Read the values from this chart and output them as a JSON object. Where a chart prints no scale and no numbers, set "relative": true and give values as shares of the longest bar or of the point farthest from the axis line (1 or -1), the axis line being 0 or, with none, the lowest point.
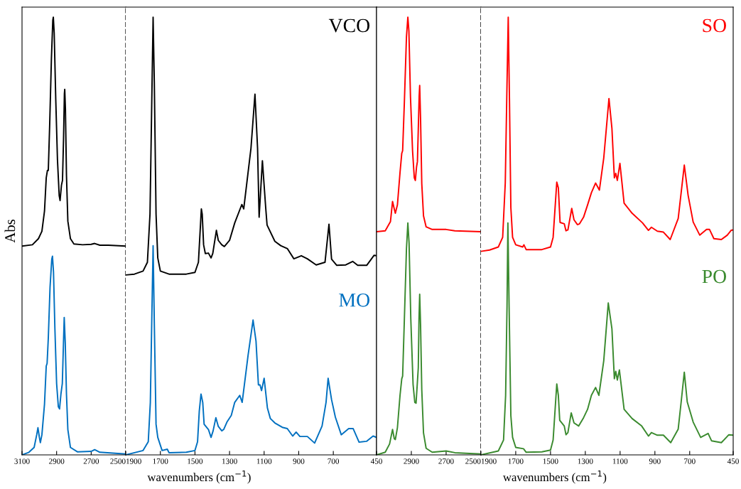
{
  "chart_data": [
    {
      "type": "line",
      "relative": true,
      "ylabel": "Abs",
      "xlim": [
        3100,
        2500
      ],
      "xticks": [
        3100,
        2900,
        2700,
        2500
      ],
      "series": [
        {
          "color": "#000000",
          "x": [
            3100,
            3040,
            3005,
            2985,
            2970,
            2960,
            2953,
            2948,
            2940,
            2930,
            2922,
            2919,
            2914,
            2905,
            2895,
            2885,
            2880,
            2872,
            2866,
            2860,
            2855,
            2853,
            2849,
            2843,
            2835,
            2820,
            2800,
            2750,
            2700,
            2680,
            2650,
            2600,
            2500
          ],
          "values": [
            0.477,
            0.48,
            0.494,
            0.511,
            0.557,
            0.633,
            0.65,
            0.65,
            0.755,
            0.906,
            0.993,
            1.0,
            0.964,
            0.813,
            0.674,
            0.592,
            0.581,
            0.616,
            0.627,
            0.72,
            0.825,
            0.835,
            0.79,
            0.639,
            0.534,
            0.494,
            0.482,
            0.48,
            0.481,
            0.483,
            0.479,
            0.479,
            0.477
          ]
        },
        {
          "color": "#0070c0",
          "x": [
            3100,
            3060,
            3030,
            3015,
            3008,
            3000,
            2994,
            2985,
            2970,
            2960,
            2955,
            2948,
            2938,
            2928,
            2924,
            2918,
            2910,
            2900,
            2890,
            2883,
            2875,
            2867,
            2862,
            2856,
            2850,
            2843,
            2835,
            2820,
            2780,
            2700,
            2680,
            2650,
            2500
          ],
          "values": [
            0.0,
            0.006,
            0.017,
            0.046,
            0.062,
            0.041,
            0.028,
            0.046,
            0.116,
            0.203,
            0.209,
            0.267,
            0.383,
            0.447,
            0.454,
            0.418,
            0.29,
            0.163,
            0.11,
            0.105,
            0.139,
            0.163,
            0.232,
            0.314,
            0.256,
            0.139,
            0.058,
            0.017,
            0.007,
            0.008,
            0.012,
            0.006,
            0.002
          ]
        }
      ]
    },
    {
      "type": "line",
      "relative": true,
      "xlabel": "wavenumbers (cm$^{−1}$)",
      "xlim": [
        1900,
        450
      ],
      "xticks": [
        1900,
        1700,
        1500,
        1300,
        1100,
        900,
        700,
        450
      ],
      "series": [
        {
          "name": "VCO",
          "color": "#000000",
          "x": [
            1900,
            1850,
            1800,
            1775,
            1760,
            1750,
            1742,
            1735,
            1725,
            1715,
            1700,
            1650,
            1550,
            1500,
            1480,
            1463,
            1458,
            1450,
            1440,
            1422,
            1407,
            1397,
            1376,
            1365,
            1345,
            1330,
            1300,
            1270,
            1229,
            1218,
            1176,
            1153,
            1138,
            1129,
            1110,
            1091,
            1083,
            1038,
            1004,
            965,
            928,
            885,
            850,
            799,
            748,
            725,
            710,
            680,
            628,
            588,
            559,
            507,
            464,
            450
          ],
          "values": [
            0.411,
            0.413,
            0.42,
            0.44,
            0.55,
            0.8,
            1.0,
            0.85,
            0.55,
            0.45,
            0.42,
            0.413,
            0.413,
            0.417,
            0.44,
            0.562,
            0.55,
            0.48,
            0.46,
            0.461,
            0.45,
            0.46,
            0.513,
            0.49,
            0.48,
            0.476,
            0.49,
            0.53,
            0.572,
            0.562,
            0.701,
            0.824,
            0.701,
            0.543,
            0.672,
            0.565,
            0.525,
            0.488,
            0.478,
            0.471,
            0.448,
            0.455,
            0.448,
            0.434,
            0.44,
            0.527,
            0.447,
            0.433,
            0.434,
            0.442,
            0.433,
            0.433,
            0.456,
            0.455
          ]
        },
        {
          "name": "MO",
          "color": "#0070c0",
          "x": [
            1900,
            1800,
            1770,
            1758,
            1750,
            1742,
            1735,
            1725,
            1715,
            1690,
            1660,
            1650,
            1550,
            1500,
            1485,
            1475,
            1465,
            1455,
            1447,
            1422,
            1407,
            1395,
            1379,
            1365,
            1345,
            1334,
            1315,
            1290,
            1270,
            1241,
            1227,
            1193,
            1164,
            1147,
            1133,
            1124,
            1115,
            1100,
            1081,
            1064,
            1038,
            995,
            966,
            935,
            915,
            893,
            850,
            808,
            765,
            742,
            730,
            710,
            688,
            654,
            611,
            585,
            551,
            508,
            470,
            450
          ],
          "values": [
            0.0,
            0.01,
            0.03,
            0.12,
            0.3,
            0.478,
            0.3,
            0.07,
            0.04,
            0.01,
            0.013,
            0.005,
            0.006,
            0.01,
            0.03,
            0.1,
            0.139,
            0.12,
            0.07,
            0.058,
            0.04,
            0.055,
            0.085,
            0.065,
            0.055,
            0.058,
            0.075,
            0.09,
            0.12,
            0.136,
            0.12,
            0.227,
            0.308,
            0.26,
            0.16,
            0.16,
            0.147,
            0.175,
            0.107,
            0.083,
            0.073,
            0.063,
            0.06,
            0.043,
            0.052,
            0.042,
            0.042,
            0.027,
            0.066,
            0.12,
            0.175,
            0.126,
            0.086,
            0.046,
            0.06,
            0.06,
            0.029,
            0.031,
            0.043,
            0.04
          ]
        }
      ]
    },
    {
      "type": "line",
      "relative": true,
      "xlim": [
        3100,
        2500
      ],
      "xticks": [
        {
          "value": 3100,
          "label": null
        },
        2900,
        2700,
        2500
      ],
      "series": [
        {
          "color": "#ff0000",
          "x": [
            3100,
            3050,
            3020,
            3008,
            3000,
            2992,
            2980,
            2965,
            2955,
            2950,
            2940,
            2928,
            2920,
            2914,
            2905,
            2893,
            2883,
            2877,
            2870,
            2865,
            2860,
            2855,
            2852,
            2847,
            2840,
            2830,
            2815,
            2780,
            2700,
            2650,
            2500
          ],
          "values": [
            0.51,
            0.512,
            0.533,
            0.579,
            0.565,
            0.552,
            0.571,
            0.645,
            0.689,
            0.695,
            0.806,
            0.955,
            1.0,
            0.968,
            0.819,
            0.695,
            0.633,
            0.627,
            0.658,
            0.67,
            0.744,
            0.819,
            0.844,
            0.769,
            0.62,
            0.546,
            0.521,
            0.515,
            0.515,
            0.512,
            0.51
          ]
        },
        {
          "color": "#3a8a2e",
          "x": [
            3100,
            3050,
            3025,
            3008,
            2998,
            2992,
            2980,
            2965,
            2955,
            2950,
            2940,
            2928,
            2920,
            2913,
            2903,
            2890,
            2880,
            2873,
            2866,
            2860,
            2856,
            2852,
            2847,
            2840,
            2830,
            2815,
            2780,
            2700,
            2650,
            2500
          ],
          "values": [
            0.0,
            0.006,
            0.025,
            0.058,
            0.037,
            0.035,
            0.062,
            0.136,
            0.174,
            0.18,
            0.31,
            0.471,
            0.53,
            0.484,
            0.31,
            0.161,
            0.12,
            0.118,
            0.161,
            0.199,
            0.31,
            0.367,
            0.298,
            0.149,
            0.05,
            0.015,
            0.006,
            0.009,
            0.005,
            0.002
          ]
        }
      ]
    },
    {
      "type": "line",
      "relative": true,
      "xlabel": "wavenumbers (cm$^{−1}$)",
      "xlim": [
        1900,
        450
      ],
      "xticks": [
        1900,
        1700,
        1500,
        1300,
        1100,
        900,
        700,
        450
      ],
      "series": [
        {
          "name": "SO",
          "color": "#ff0000",
          "x": [
            1900,
            1850,
            1800,
            1775,
            1760,
            1750,
            1743,
            1736,
            1728,
            1718,
            1700,
            1660,
            1653,
            1640,
            1550,
            1500,
            1485,
            1464,
            1455,
            1445,
            1421,
            1411,
            1400,
            1378,
            1365,
            1345,
            1333,
            1310,
            1287,
            1265,
            1241,
            1219,
            1194,
            1164,
            1147,
            1133,
            1125,
            1116,
            1101,
            1077,
            1031,
            971,
            937,
            920,
            886,
            851,
            812,
            766,
            731,
            709,
            680,
            642,
            603,
            586,
            561,
            518,
            484,
            462,
            450
          ],
          "values": [
            0.465,
            0.468,
            0.475,
            0.497,
            0.622,
            0.848,
            1.0,
            0.814,
            0.565,
            0.497,
            0.48,
            0.475,
            0.48,
            0.469,
            0.469,
            0.475,
            0.497,
            0.623,
            0.61,
            0.531,
            0.528,
            0.512,
            0.514,
            0.563,
            0.537,
            0.526,
            0.528,
            0.543,
            0.571,
            0.599,
            0.621,
            0.605,
            0.678,
            0.814,
            0.746,
            0.633,
            0.643,
            0.627,
            0.666,
            0.575,
            0.552,
            0.53,
            0.513,
            0.52,
            0.511,
            0.509,
            0.492,
            0.54,
            0.662,
            0.593,
            0.532,
            0.502,
            0.515,
            0.515,
            0.494,
            0.492,
            0.502,
            0.513,
            0.514
          ]
        },
        {
          "name": "PO",
          "color": "#3a8a2e",
          "x": [
            1900,
            1800,
            1770,
            1758,
            1750,
            1745,
            1738,
            1728,
            1718,
            1700,
            1655,
            1640,
            1550,
            1500,
            1485,
            1464,
            1455,
            1447,
            1421,
            1411,
            1400,
            1381,
            1365,
            1338,
            1310,
            1287,
            1265,
            1241,
            1222,
            1194,
            1168,
            1147,
            1133,
            1125,
            1116,
            1104,
            1077,
            1031,
            976,
            937,
            920,
            886,
            851,
            809,
            766,
            749,
            731,
            714,
            680,
            637,
            594,
            574,
            518,
            475,
            450
          ],
          "values": [
            0.0,
            0.009,
            0.034,
            0.136,
            0.339,
            0.53,
            0.339,
            0.09,
            0.04,
            0.017,
            0.014,
            0.006,
            0.007,
            0.011,
            0.034,
            0.162,
            0.136,
            0.079,
            0.066,
            0.046,
            0.051,
            0.096,
            0.073,
            0.066,
            0.085,
            0.104,
            0.136,
            0.154,
            0.136,
            0.215,
            0.347,
            0.288,
            0.174,
            0.191,
            0.171,
            0.194,
            0.104,
            0.083,
            0.066,
            0.043,
            0.051,
            0.045,
            0.045,
            0.028,
            0.059,
            0.121,
            0.189,
            0.121,
            0.075,
            0.04,
            0.049,
            0.032,
            0.028,
            0.046,
            0.045
          ]
        }
      ]
    }
  ]
}
